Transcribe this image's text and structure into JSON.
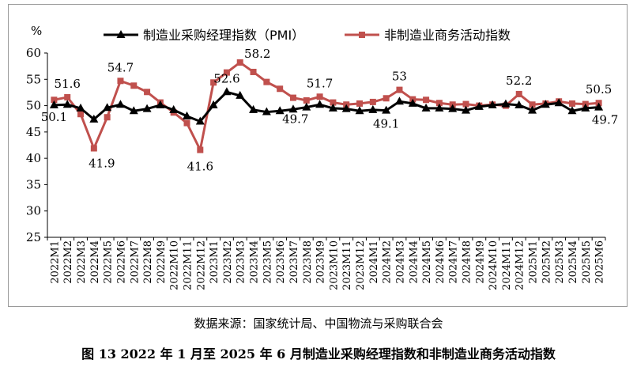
{
  "chart_data": {
    "type": "line",
    "unit_label": "%",
    "ylim": [
      25,
      60
    ],
    "yticks": [
      25,
      30,
      35,
      40,
      45,
      50,
      55,
      60
    ],
    "grid": false,
    "legend_position": "top",
    "x": [
      "2022M1",
      "2022M2",
      "2022M3",
      "2022M4",
      "2022M5",
      "2022M6",
      "2022M7",
      "2022M8",
      "2022M9",
      "2022M10",
      "2022M11",
      "2022M12",
      "2023M1",
      "2023M2",
      "2023M3",
      "2023M4",
      "2023M5",
      "2023M6",
      "2023M7",
      "2023M8",
      "2023M9",
      "2023M10",
      "2023M11",
      "2023M12",
      "2024M1",
      "2024M2",
      "2024M3",
      "2024M4",
      "2024M5",
      "2024M6",
      "2024M7",
      "2024M8",
      "2024M9",
      "2024M10",
      "2024M11",
      "2024M12",
      "2025M1",
      "2025M2",
      "2025M3",
      "2025M4",
      "2025M5",
      "2025M6"
    ],
    "series": [
      {
        "name": "制造业采购经理指数（PMI）",
        "color": "#000000",
        "marker": "triangle",
        "values": [
          50.1,
          50.2,
          49.5,
          47.4,
          49.6,
          50.2,
          49.0,
          49.4,
          50.1,
          49.2,
          48.0,
          47.0,
          50.1,
          52.6,
          51.9,
          49.2,
          48.8,
          49.0,
          49.3,
          49.7,
          50.2,
          49.5,
          49.4,
          49.0,
          49.2,
          49.1,
          50.8,
          50.4,
          49.5,
          49.5,
          49.4,
          49.1,
          49.8,
          50.1,
          50.3,
          50.1,
          49.1,
          50.2,
          50.5,
          49.0,
          49.5,
          49.7
        ],
        "labels": [
          {
            "i": 0,
            "text": "50.1"
          },
          {
            "i": 13,
            "text": "52.6"
          },
          {
            "i": 19,
            "text": "49.7"
          },
          {
            "i": 25,
            "text": "49.1"
          },
          {
            "i": 41,
            "text": "49.7"
          }
        ]
      },
      {
        "name": "非制造业商务活动指数",
        "color": "#c0504d",
        "marker": "square",
        "values": [
          51.1,
          51.6,
          48.4,
          41.9,
          47.8,
          54.7,
          53.8,
          52.6,
          50.6,
          48.7,
          46.7,
          41.6,
          54.4,
          56.3,
          58.2,
          56.4,
          54.5,
          53.2,
          51.5,
          51.0,
          51.7,
          50.6,
          50.2,
          50.4,
          50.7,
          51.4,
          53.0,
          51.2,
          51.1,
          50.5,
          50.2,
          50.3,
          50.0,
          50.2,
          50.0,
          52.2,
          50.2,
          50.4,
          50.8,
          50.4,
          50.3,
          50.5
        ],
        "labels": [
          {
            "i": 1,
            "text": "51.6"
          },
          {
            "i": 3,
            "text": "41.9"
          },
          {
            "i": 5,
            "text": "54.7"
          },
          {
            "i": 11,
            "text": "41.6"
          },
          {
            "i": 14,
            "text": "58.2"
          },
          {
            "i": 20,
            "text": "51.7"
          },
          {
            "i": 26,
            "text": "53"
          },
          {
            "i": 35,
            "text": "52.2"
          },
          {
            "i": 41,
            "text": "50.5"
          }
        ]
      }
    ]
  },
  "source_text": "数据来源：国家统计局、中国物流与采购联合会",
  "caption_text": "图 13 2022 年 1 月至 2025 年 6 月制造业采购经理指数和非制造业商务活动指数"
}
